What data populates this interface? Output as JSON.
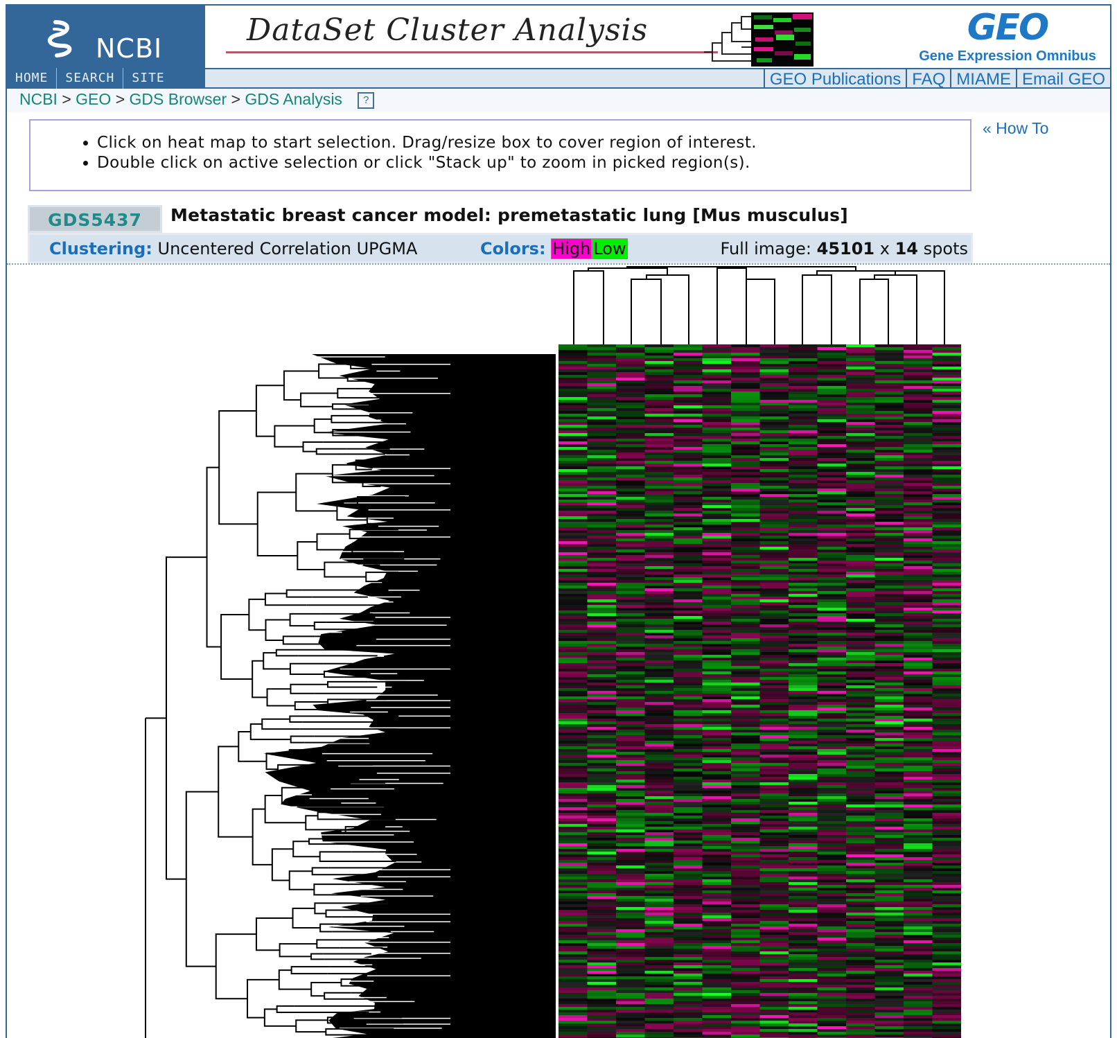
{
  "header": {
    "ncbi_label": "NCBI",
    "nav": [
      "HOME",
      "SEARCH",
      "SITE MAP"
    ],
    "banner_title": "DataSet Cluster Analysis",
    "geo_logo": "GEO",
    "geo_subtitle": "Gene Expression Omnibus",
    "top_links": [
      "GEO Publications",
      "FAQ",
      "MIAME",
      "Email GEO"
    ]
  },
  "breadcrumb": {
    "items": [
      "NCBI",
      "GEO",
      "GDS Browser",
      "GDS Analysis"
    ],
    "separator": ">",
    "help_icon": "?"
  },
  "instructions": {
    "items": [
      "Click on heat map to start selection. Drag/resize box to cover region of interest.",
      "Double click on active selection or click \"Stack up\" to zoom in picked region(s)."
    ],
    "how_to": "« How To"
  },
  "dataset": {
    "id": "GDS5437",
    "title": "Metastatic breast cancer model: premetastatic lung [Mus musculus]",
    "clustering_label": "Clustering:",
    "clustering_value": "Uncentered Correlation UPGMA",
    "colors_label": "Colors:",
    "color_high": "High",
    "color_low": "Low",
    "full_image_label": "Full image:",
    "rows": "45101",
    "x": "x",
    "cols": "14",
    "spots_label": "spots"
  },
  "colors": {
    "high": "#ff00cc",
    "low": "#00ee00",
    "link": "#1a6fb8",
    "header_blue": "#336699"
  }
}
